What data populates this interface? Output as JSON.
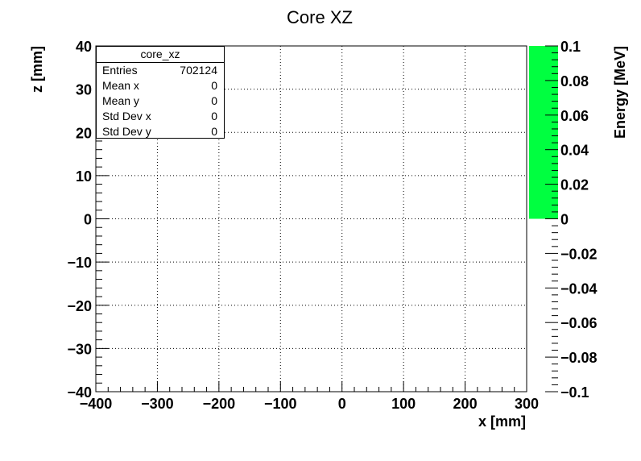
{
  "chart_data": {
    "type": "heatmap",
    "title": "Core XZ",
    "xlabel": "x [mm]",
    "ylabel": "z [mm]",
    "zlabel": "Energy [MeV]",
    "xlim": [
      -400,
      300
    ],
    "ylim": [
      -40,
      40
    ],
    "zlim": [
      -0.1,
      0.1
    ],
    "grid": true,
    "x_ticks": [
      -400,
      -300,
      -200,
      -100,
      0,
      100,
      200,
      300
    ],
    "y_ticks": [
      -40,
      -30,
      -20,
      -10,
      0,
      10,
      20,
      30,
      40
    ],
    "z_ticks": [
      -0.1,
      -0.08,
      -0.06,
      -0.04,
      -0.02,
      0,
      0.02,
      0.04,
      0.06,
      0.08,
      0.1
    ],
    "palette_fill": {
      "from": 0,
      "to": 0.1,
      "color": "#00ff40"
    },
    "cells": []
  },
  "stats": {
    "name": "core_xz",
    "rows": [
      {
        "label": "Entries",
        "value": "702124"
      },
      {
        "label": "Mean x",
        "value": "0"
      },
      {
        "label": "Mean y",
        "value": "0"
      },
      {
        "label": "Std Dev x",
        "value": "0"
      },
      {
        "label": "Std Dev y",
        "value": "0"
      }
    ]
  }
}
